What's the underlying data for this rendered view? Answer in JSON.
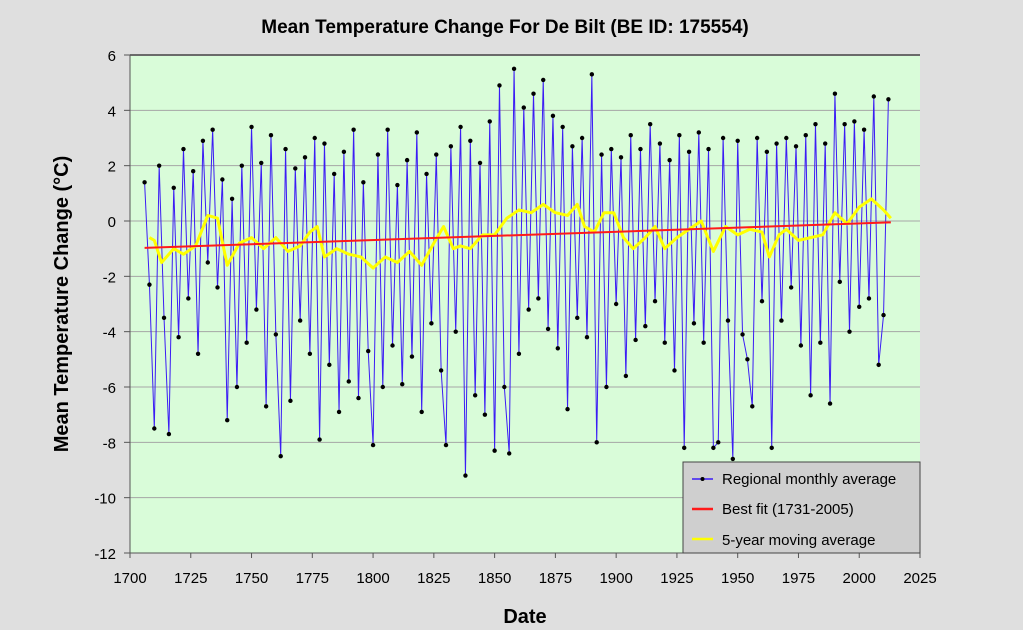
{
  "chart_data": {
    "type": "line",
    "title": "Mean Temperature Change For De Bilt (BE ID: 175554)",
    "xlabel": "Date",
    "ylabel": "Mean  Temperature  Change  (°C)",
    "xlim": [
      1700,
      2025
    ],
    "ylim": [
      -12,
      6
    ],
    "xticks": [
      "1700",
      "1725",
      "1750",
      "1775",
      "1800",
      "1825",
      "1850",
      "1875",
      "1900",
      "1925",
      "1950",
      "1975",
      "2000",
      "2025"
    ],
    "yticks": [
      "6",
      "4",
      "2",
      "0",
      "-2",
      "-4",
      "-6",
      "-8",
      "-10",
      "-12"
    ],
    "grid": true,
    "legend_position": "bottom-right",
    "background_color": "#d9fcd9",
    "series": [
      {
        "name": "Regional monthly average",
        "color": "#3b1cf5",
        "marker_color": "#000000",
        "x_start": 1706,
        "x_step": 2,
        "values": [
          1.4,
          -2.3,
          -7.5,
          2.0,
          -3.5,
          -7.7,
          1.2,
          -4.2,
          2.6,
          -2.8,
          1.8,
          -4.8,
          2.9,
          -1.5,
          3.3,
          -2.4,
          1.5,
          -7.2,
          0.8,
          -6.0,
          2.0,
          -4.4,
          3.4,
          -3.2,
          2.1,
          -6.7,
          3.1,
          -4.1,
          -8.5,
          2.6,
          -6.5,
          1.9,
          -3.6,
          2.3,
          -4.8,
          3.0,
          -7.9,
          2.8,
          -5.2,
          1.7,
          -6.9,
          2.5,
          -5.8,
          3.3,
          -6.4,
          1.4,
          -4.7,
          -8.1,
          2.4,
          -6.0,
          3.3,
          -4.5,
          1.3,
          -5.9,
          2.2,
          -4.9,
          3.2,
          -6.9,
          1.7,
          -3.7,
          2.4,
          -5.4,
          -8.1,
          2.7,
          -4.0,
          3.4,
          -9.2,
          2.9,
          -6.3,
          2.1,
          -7.0,
          3.6,
          -8.3,
          4.9,
          -6.0,
          -8.4,
          5.5,
          -4.8,
          4.1,
          -3.2,
          4.6,
          -2.8,
          5.1,
          -3.9,
          3.8,
          -4.6,
          3.4,
          -6.8,
          2.7,
          -3.5,
          3.0,
          -4.2,
          5.3,
          -8.0,
          2.4,
          -6.0,
          2.6,
          -3.0,
          2.3,
          -5.6,
          3.1,
          -4.3,
          2.6,
          -3.8,
          3.5,
          -2.9,
          2.8,
          -4.4,
          2.2,
          -5.4,
          3.1,
          -8.2,
          2.5,
          -3.7,
          3.2,
          -4.4,
          2.6,
          -8.2,
          -8.0,
          3.0,
          -3.6,
          -8.6,
          2.9,
          -4.1,
          -5.0,
          -6.7,
          3.0,
          -2.9,
          2.5,
          -8.2,
          2.8,
          -3.6,
          3.0,
          -2.4,
          2.7,
          -4.5,
          3.1,
          -6.3,
          3.5,
          -4.4,
          2.8,
          -6.6,
          4.6,
          -2.2,
          3.5,
          -4.0,
          3.6,
          -3.1,
          3.3,
          -2.8,
          4.5,
          -5.2,
          -3.4,
          4.4
        ]
      },
      {
        "name": "Best fit (1731-2005)",
        "color": "#ff1a1a",
        "x": [
          1706,
          2013
        ],
        "values": [
          -0.97,
          -0.05
        ]
      },
      {
        "name": "5-year moving average",
        "color": "#ffff00",
        "x": [
          1708,
          1710,
          1713,
          1718,
          1722,
          1727,
          1732,
          1736,
          1740,
          1745,
          1750,
          1755,
          1760,
          1765,
          1770,
          1774,
          1777,
          1780,
          1785,
          1790,
          1795,
          1800,
          1805,
          1810,
          1815,
          1820,
          1825,
          1829,
          1833,
          1836,
          1840,
          1845,
          1850,
          1855,
          1860,
          1865,
          1870,
          1875,
          1880,
          1884,
          1887,
          1891,
          1895,
          1899,
          1903,
          1907,
          1912,
          1916,
          1920,
          1925,
          1930,
          1935,
          1940,
          1945,
          1950,
          1955,
          1960,
          1963,
          1967,
          1970,
          1975,
          1980,
          1985,
          1990,
          1995,
          2000,
          2005,
          2010,
          2013
        ],
        "values": [
          -0.6,
          -0.7,
          -1.5,
          -1.0,
          -1.2,
          -0.9,
          0.2,
          0.1,
          -1.6,
          -0.8,
          -0.6,
          -1.0,
          -0.6,
          -1.1,
          -0.9,
          -0.4,
          -0.2,
          -1.3,
          -1.0,
          -1.2,
          -1.3,
          -1.7,
          -1.3,
          -1.5,
          -1.1,
          -1.6,
          -0.8,
          -0.2,
          -1.0,
          -0.9,
          -1.0,
          -0.5,
          -0.5,
          0.1,
          0.4,
          0.3,
          0.6,
          0.3,
          0.2,
          0.6,
          -0.2,
          -0.4,
          0.3,
          0.3,
          -0.6,
          -1.0,
          -0.6,
          -0.2,
          -1.0,
          -0.6,
          -0.3,
          0.0,
          -1.1,
          -0.2,
          -0.5,
          -0.3,
          -0.4,
          -1.3,
          -0.5,
          -0.3,
          -0.7,
          -0.6,
          -0.5,
          0.3,
          -0.1,
          0.5,
          0.8,
          0.4,
          0.1
        ]
      }
    ]
  }
}
